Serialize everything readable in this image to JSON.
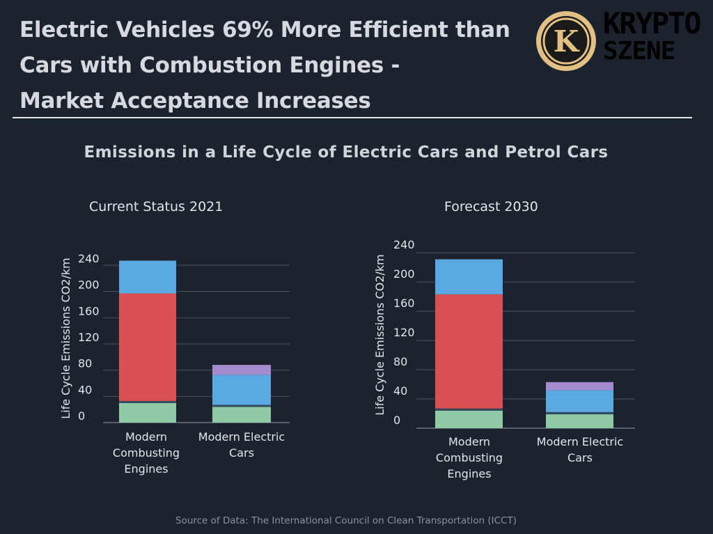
{
  "header": {
    "title_lines": [
      "Electric Vehicles 69% More Efficient than",
      "Cars with Combustion Engines -",
      "Market Acceptance Increases"
    ]
  },
  "logo": {
    "line1": "KRYPTO",
    "line2": "SZENE",
    "badge_letter": "K"
  },
  "chart_title": "Emissions in a Life Cycle of Electric Cars and Petrol Cars",
  "source": "Source of Data: The International Council on Clean Transportation (ICCT)",
  "colors": {
    "green": "#8fc9a5",
    "dark": "#34495e",
    "red": "#d95153",
    "blue": "#5aa9e0",
    "purple": "#a58bce",
    "grid": "#4a5562",
    "axis": "#6a7480",
    "logo_gold": "#e2bf83"
  },
  "chart_data": [
    {
      "type": "bar",
      "stacked": true,
      "title": "Current Status 2021",
      "ylabel": "Life Cycle Emissions CO2/km",
      "ylim": [
        0,
        240
      ],
      "yticks": [
        "0",
        "40",
        "80",
        "120",
        "160",
        "200",
        "240"
      ],
      "categories": [
        "Modern Combusting Engines",
        "Modern Electric Cars"
      ],
      "category_lines": [
        [
          "Modern",
          "Combusting",
          "Engines"
        ],
        [
          "Modern Electric",
          "Cars"
        ]
      ],
      "segments": [
        {
          "color": "green",
          "values": [
            30,
            24
          ]
        },
        {
          "color": "dark",
          "values": [
            3,
            3
          ]
        },
        {
          "color": "red",
          "values": [
            164,
            0
          ]
        },
        {
          "color": "blue",
          "values": [
            50,
            46
          ]
        },
        {
          "color": "purple",
          "values": [
            0,
            15
          ]
        }
      ],
      "grid": true
    },
    {
      "type": "bar",
      "stacked": true,
      "title": "Forecast 2030",
      "ylabel": "Life Cycle Emissions CO2/km",
      "ylim": [
        0,
        240
      ],
      "yticks": [
        "0",
        "40",
        "80",
        "120",
        "160",
        "200",
        "240"
      ],
      "categories": [
        "Modern Combusting Engines",
        "Modern Electric Cars"
      ],
      "category_lines": [
        [
          "Modern",
          "Combusting",
          "Engines"
        ],
        [
          "Modern Electric",
          "Cars"
        ]
      ],
      "segments": [
        {
          "color": "green",
          "values": [
            24,
            19
          ]
        },
        {
          "color": "dark",
          "values": [
            3,
            3
          ]
        },
        {
          "color": "red",
          "values": [
            156,
            0
          ]
        },
        {
          "color": "blue",
          "values": [
            48,
            30
          ]
        },
        {
          "color": "purple",
          "values": [
            0,
            11
          ]
        }
      ],
      "grid": true
    }
  ]
}
